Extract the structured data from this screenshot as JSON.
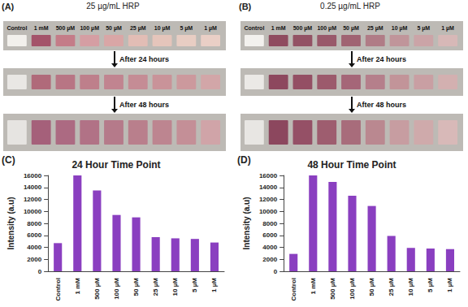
{
  "panels": [
    {
      "label": "(A)",
      "title": "25 µg/mL HRP",
      "lane_labels": [
        "Control",
        "1 mM",
        "500 µM",
        "100 µM",
        "50 µM",
        "25 µM",
        "10 µM",
        "5 µM",
        "1 µM"
      ],
      "steps": [
        "After 24 hours",
        "After 48 hours"
      ],
      "strip_colors": [
        [
          "#f2f0ec",
          "#a4536a",
          "#c47c88",
          "#d59ea3",
          "#d9a6a6",
          "#e2bdb5",
          "#e5c5bb",
          "#e8cdc3",
          "#eacfc6"
        ],
        [
          "#e9e7e4",
          "#b06a7a",
          "#b87584",
          "#be7f8b",
          "#c18490",
          "#c58c95",
          "#c99399",
          "#cc999d",
          "#d2a6a8"
        ],
        [
          "#e6e4e1",
          "#a5607a",
          "#ac6a82",
          "#b17286",
          "#b57a8a",
          "#b97f8c",
          "#bd8590",
          "#c48f97",
          "#d0a4a8"
        ]
      ]
    },
    {
      "label": "(B)",
      "title": "0.25 µg/mL HRP",
      "lane_labels": [
        "Control",
        "1 mM",
        "500 µM",
        "100 µM",
        "50 µM",
        "25 µM",
        "10 µM",
        "5 µM",
        "1 µM"
      ],
      "steps": [
        "After 24 hours",
        "After 48 hours"
      ],
      "strip_colors": [
        [
          "#f3f1ee",
          "#8f4b5f",
          "#935264",
          "#99596a",
          "#a06372",
          "#b07c86",
          "#c0959a",
          "#cba4a7",
          "#d7b8b7"
        ],
        [
          "#ebe9e6",
          "#8d485e",
          "#944f64",
          "#9c5a6c",
          "#a56678",
          "#b57f8b",
          "#c29499",
          "#c99fa3",
          "#d3b0b0"
        ],
        [
          "#e8e6e3",
          "#8c475e",
          "#955066",
          "#9e5d6f",
          "#a86c7b",
          "#ba8890",
          "#c79da1",
          "#cfaaab",
          "#d8b9b8"
        ]
      ]
    }
  ],
  "chart_data": [
    {
      "panel_label": "(C)",
      "type": "bar",
      "title": "24 Hour Time Point",
      "ylabel": "Intensity (a.u)",
      "categories": [
        "Control",
        "1 mM",
        "500 µM",
        "100 µM",
        "50 µM",
        "25 µM",
        "10 µM",
        "5 µM",
        "1 µM"
      ],
      "values": [
        4700,
        16000,
        13500,
        9400,
        9000,
        5700,
        5500,
        5400,
        4800
      ],
      "color": "#8a3fc0",
      "ylim": [
        0,
        16000
      ],
      "yticks": [
        0,
        2000,
        4000,
        6000,
        8000,
        10000,
        12000,
        14000,
        16000
      ],
      "grid": false
    },
    {
      "panel_label": "(D)",
      "type": "bar",
      "title": "48 Hour Time Point",
      "ylabel": "Intensity (a.u)",
      "categories": [
        "Control",
        "1 mM",
        "500 µM",
        "100 µM",
        "50 µM",
        "25 µM",
        "10 µM",
        "5 µM",
        "1 µM"
      ],
      "values": [
        2900,
        16000,
        14900,
        12600,
        10900,
        5900,
        3900,
        3800,
        3700
      ],
      "color": "#8a3fc0",
      "ylim": [
        0,
        16000
      ],
      "yticks": [
        0,
        2000,
        4000,
        6000,
        8000,
        10000,
        12000,
        14000,
        16000
      ],
      "grid": false
    }
  ]
}
